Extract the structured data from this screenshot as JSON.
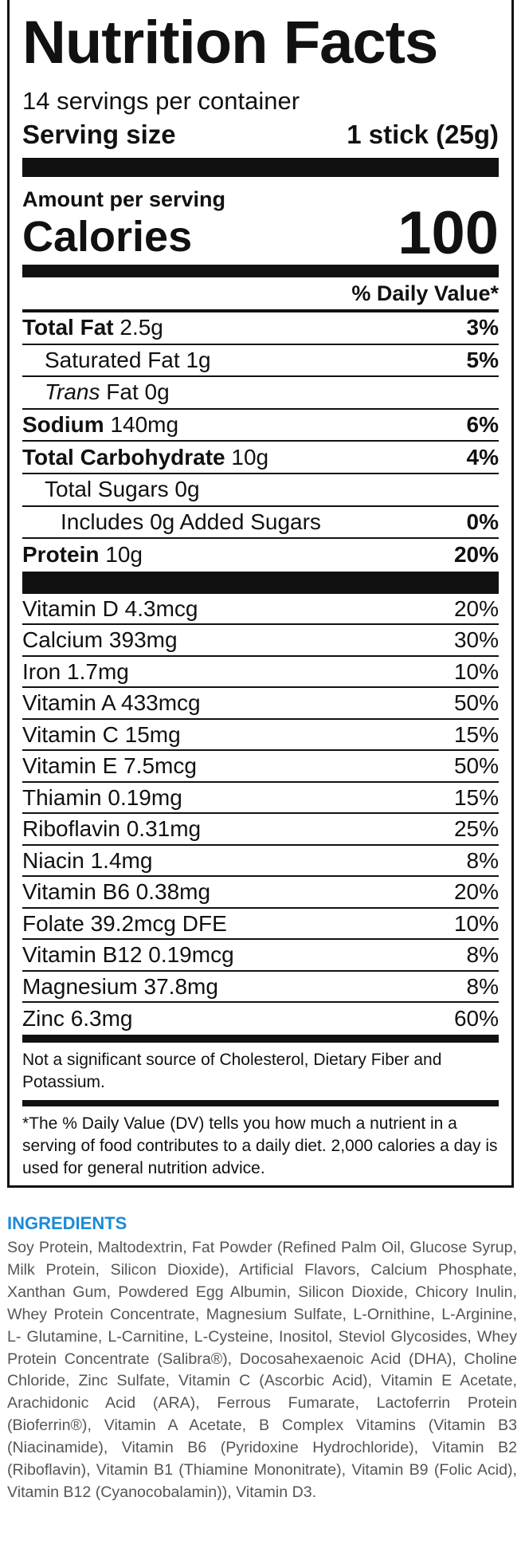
{
  "label": {
    "title": "Nutrition Facts",
    "servings": "14 servings per container",
    "serving_size_label": "Serving size",
    "serving_size_value": "1 stick (25g)",
    "amount_per_serving": "Amount per serving",
    "calories_label": "Calories",
    "calories_value": "100",
    "dv_header": "% Daily Value*",
    "nutrients": [
      {
        "name": "Total Fat",
        "amount": "2.5g",
        "dv": "3%"
      },
      {
        "name": "Saturated Fat",
        "amount": "1g",
        "dv": "5%"
      },
      {
        "name_italic": "Trans",
        "name": "Fat",
        "amount": "0g"
      },
      {
        "name": "Sodium",
        "amount": "140mg",
        "dv": "6%"
      },
      {
        "name": "Total Carbohydrate",
        "amount": "10g",
        "dv": "4%"
      },
      {
        "name": "Total Sugars",
        "amount": "0g"
      },
      {
        "name": "Includes 0g Added Sugars",
        "dv": "0%"
      },
      {
        "name": "Protein",
        "amount": "10g",
        "dv": "20%"
      }
    ],
    "vitamins": [
      {
        "name": "Vitamin D",
        "amount": "4.3mcg",
        "dv": "20%"
      },
      {
        "name": "Calcium",
        "amount": "393mg",
        "dv": "30%"
      },
      {
        "name": "Iron",
        "amount": "1.7mg",
        "dv": "10%"
      },
      {
        "name": "Vitamin A",
        "amount": "433mcg",
        "dv": "50%"
      },
      {
        "name": "Vitamin C",
        "amount": "15mg",
        "dv": "15%"
      },
      {
        "name": "Vitamin E",
        "amount": "7.5mcg",
        "dv": "50%"
      },
      {
        "name": "Thiamin",
        "amount": "0.19mg",
        "dv": "15%"
      },
      {
        "name": "Riboflavin",
        "amount": "0.31mg",
        "dv": "25%"
      },
      {
        "name": "Niacin",
        "amount": "1.4mg",
        "dv": "8%"
      },
      {
        "name": "Vitamin B6",
        "amount": "0.38mg",
        "dv": "20%"
      },
      {
        "name": "Folate",
        "amount": "39.2mcg DFE",
        "dv": "10%"
      },
      {
        "name": "Vitamin B12",
        "amount": "0.19mcg",
        "dv": "8%"
      },
      {
        "name": "Magnesium",
        "amount": "37.8mg",
        "dv": "8%"
      },
      {
        "name": "Zinc",
        "amount": "6.3mg",
        "dv": "60%"
      }
    ],
    "note": "Not a significant source of Cholesterol, Dietary Fiber and Potassium.",
    "footnote": "*The % Daily Value (DV) tells you how much a nutrient in a serving of food contributes to a daily diet. 2,000 calories a day is used for general nutrition advice."
  },
  "ingredients": {
    "heading": "INGREDIENTS",
    "text": "Soy Protein, Maltodextrin, Fat Powder (Refined Palm Oil, Glucose Syrup, Milk Protein, Silicon Dioxide), Artificial Flavors, Calcium Phosphate, Xanthan Gum, Powdered Egg Albumin, Silicon Dioxide, Chicory Inulin, Whey Protein Concentrate, Magnesium Sulfate, L-Ornithine, L-Arginine, L- Glutamine, L-Carnitine, L-Cysteine, Inositol, Steviol Glycosides, Whey Protein Concentrate (Salibra®), Docosahexaenoic Acid (DHA), Choline Chloride, Zinc Sulfate, Vitamin C (Ascorbic Acid), Vitamin E Acetate, Arachidonic Acid (ARA), Ferrous Fumarate, Lactoferrin Protein (Bioferrin®), Vitamin A Acetate, B Complex Vitamins (Vitamin B3 (Niacinamide), Vitamin B6 (Pyridoxine Hydrochloride), Vitamin B2 (Riboflavin), Vitamin B1 (Thiamine Mononitrate), Vitamin B9 (Folic Acid), Vitamin B12 (Cyanocobalamin)), Vitamin D3."
  }
}
